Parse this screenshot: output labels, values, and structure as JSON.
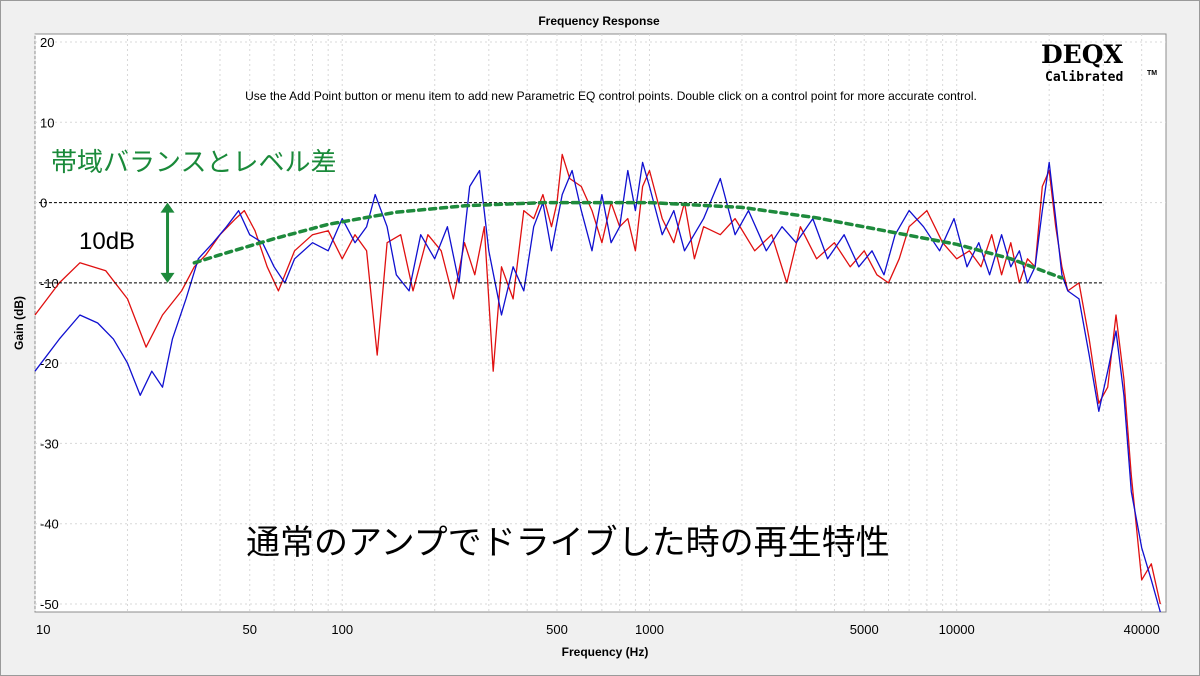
{
  "chart_data": {
    "type": "line",
    "title": "Frequency Response",
    "instruction": "Use the Add Point button or menu item to add new Parametric EQ control points.  Double click on a control point for more accurate control.",
    "xlabel": "Frequency (Hz)",
    "ylabel": "Gain (dB)",
    "x_scale": "log",
    "xlim": [
      10,
      48000
    ],
    "ylim": [
      -51,
      21
    ],
    "x_ticks": [
      10,
      50,
      100,
      500,
      1000,
      5000,
      10000,
      40000
    ],
    "x_tick_labels": [
      "10",
      "50",
      "100",
      "500",
      "1000",
      "5000",
      "10000",
      "40000"
    ],
    "y_ticks": [
      20,
      10,
      0,
      -10,
      -20,
      -30,
      -40,
      -50
    ],
    "y_tick_labels": [
      "20",
      "10",
      "0",
      "-10",
      "-20",
      "-30",
      "-40",
      "-50"
    ],
    "grid": true,
    "series": [
      {
        "color": "#e01010",
        "points": [
          [
            10,
            -14
          ],
          [
            12,
            -10
          ],
          [
            14,
            -7.5
          ],
          [
            17,
            -8.5
          ],
          [
            20,
            -12
          ],
          [
            23,
            -18
          ],
          [
            26,
            -14
          ],
          [
            30,
            -11
          ],
          [
            33,
            -8
          ],
          [
            36,
            -6.5
          ],
          [
            40,
            -4
          ],
          [
            45,
            -2
          ],
          [
            48,
            -1
          ],
          [
            52,
            -3.5
          ],
          [
            57,
            -8
          ],
          [
            62,
            -11
          ],
          [
            70,
            -6
          ],
          [
            80,
            -4
          ],
          [
            90,
            -3.5
          ],
          [
            100,
            -7
          ],
          [
            110,
            -4
          ],
          [
            120,
            -6
          ],
          [
            130,
            -19
          ],
          [
            140,
            -5
          ],
          [
            155,
            -4
          ],
          [
            170,
            -11
          ],
          [
            190,
            -4
          ],
          [
            210,
            -6
          ],
          [
            230,
            -12
          ],
          [
            250,
            -5
          ],
          [
            270,
            -9
          ],
          [
            290,
            -3
          ],
          [
            310,
            -21
          ],
          [
            330,
            -8
          ],
          [
            360,
            -12
          ],
          [
            390,
            -1
          ],
          [
            420,
            -2
          ],
          [
            450,
            1
          ],
          [
            480,
            -3
          ],
          [
            500,
            0
          ],
          [
            520,
            6
          ],
          [
            550,
            3
          ],
          [
            600,
            2
          ],
          [
            650,
            -1
          ],
          [
            700,
            -5
          ],
          [
            750,
            0
          ],
          [
            800,
            -3
          ],
          [
            850,
            -2
          ],
          [
            900,
            -6
          ],
          [
            950,
            2
          ],
          [
            1000,
            4
          ],
          [
            1100,
            -2
          ],
          [
            1200,
            -5
          ],
          [
            1300,
            0
          ],
          [
            1400,
            -7
          ],
          [
            1500,
            -3
          ],
          [
            1700,
            -4
          ],
          [
            1900,
            -2
          ],
          [
            2200,
            -6
          ],
          [
            2500,
            -4
          ],
          [
            2800,
            -10
          ],
          [
            3100,
            -3
          ],
          [
            3500,
            -7
          ],
          [
            4000,
            -5
          ],
          [
            4500,
            -8
          ],
          [
            5000,
            -6
          ],
          [
            5500,
            -9
          ],
          [
            6000,
            -10
          ],
          [
            6500,
            -7
          ],
          [
            7000,
            -3
          ],
          [
            8000,
            -1
          ],
          [
            9000,
            -5
          ],
          [
            10000,
            -7
          ],
          [
            11000,
            -6
          ],
          [
            12000,
            -8
          ],
          [
            13000,
            -4
          ],
          [
            14000,
            -9
          ],
          [
            15000,
            -5
          ],
          [
            16000,
            -10
          ],
          [
            17000,
            -7
          ],
          [
            18000,
            -8
          ],
          [
            19000,
            2
          ],
          [
            20000,
            4
          ],
          [
            21000,
            -3
          ],
          [
            22000,
            -8
          ],
          [
            23000,
            -11
          ],
          [
            25000,
            -10
          ],
          [
            27000,
            -17
          ],
          [
            29000,
            -25
          ],
          [
            31000,
            -23
          ],
          [
            33000,
            -14
          ],
          [
            35000,
            -22
          ],
          [
            37000,
            -34
          ],
          [
            40000,
            -47
          ],
          [
            43000,
            -45
          ],
          [
            46000,
            -50
          ]
        ]
      },
      {
        "color": "#1010d0",
        "points": [
          [
            10,
            -21
          ],
          [
            12,
            -17
          ],
          [
            14,
            -14
          ],
          [
            16,
            -15
          ],
          [
            18,
            -17
          ],
          [
            20,
            -20
          ],
          [
            22,
            -24
          ],
          [
            24,
            -21
          ],
          [
            26,
            -23
          ],
          [
            28,
            -17
          ],
          [
            31,
            -12
          ],
          [
            34,
            -7
          ],
          [
            38,
            -5
          ],
          [
            42,
            -3
          ],
          [
            46,
            -1
          ],
          [
            50,
            -4
          ],
          [
            55,
            -5
          ],
          [
            60,
            -8
          ],
          [
            65,
            -10
          ],
          [
            70,
            -7
          ],
          [
            80,
            -5
          ],
          [
            90,
            -6
          ],
          [
            100,
            -2
          ],
          [
            110,
            -5
          ],
          [
            120,
            -3
          ],
          [
            128,
            1
          ],
          [
            140,
            -3
          ],
          [
            150,
            -9
          ],
          [
            165,
            -11
          ],
          [
            180,
            -4
          ],
          [
            200,
            -7
          ],
          [
            220,
            -3
          ],
          [
            240,
            -10
          ],
          [
            260,
            2
          ],
          [
            280,
            4
          ],
          [
            300,
            -6
          ],
          [
            330,
            -14
          ],
          [
            360,
            -8
          ],
          [
            390,
            -11
          ],
          [
            420,
            -3
          ],
          [
            450,
            0
          ],
          [
            480,
            -6
          ],
          [
            520,
            1
          ],
          [
            560,
            4
          ],
          [
            600,
            -1
          ],
          [
            650,
            -6
          ],
          [
            700,
            1
          ],
          [
            750,
            -5
          ],
          [
            800,
            -3
          ],
          [
            850,
            4
          ],
          [
            900,
            -1
          ],
          [
            950,
            5
          ],
          [
            1000,
            2
          ],
          [
            1100,
            -4
          ],
          [
            1200,
            -1
          ],
          [
            1300,
            -6
          ],
          [
            1500,
            -2
          ],
          [
            1700,
            3
          ],
          [
            1900,
            -4
          ],
          [
            2100,
            -1
          ],
          [
            2400,
            -6
          ],
          [
            2700,
            -3
          ],
          [
            3000,
            -5
          ],
          [
            3400,
            -2
          ],
          [
            3800,
            -7
          ],
          [
            4300,
            -4
          ],
          [
            4800,
            -8
          ],
          [
            5300,
            -6
          ],
          [
            5800,
            -9
          ],
          [
            6300,
            -4
          ],
          [
            7000,
            -1
          ],
          [
            7800,
            -3
          ],
          [
            8800,
            -6
          ],
          [
            9800,
            -2
          ],
          [
            10800,
            -8
          ],
          [
            11800,
            -5
          ],
          [
            12800,
            -9
          ],
          [
            14000,
            -4
          ],
          [
            15000,
            -8
          ],
          [
            16000,
            -6
          ],
          [
            17000,
            -10
          ],
          [
            18000,
            -8
          ],
          [
            19000,
            -1
          ],
          [
            20000,
            5
          ],
          [
            21000,
            -2
          ],
          [
            22000,
            -9
          ],
          [
            23000,
            -11
          ],
          [
            25000,
            -12
          ],
          [
            27000,
            -19
          ],
          [
            29000,
            -26
          ],
          [
            31000,
            -21
          ],
          [
            33000,
            -16
          ],
          [
            35000,
            -24
          ],
          [
            37000,
            -36
          ],
          [
            40000,
            -43
          ],
          [
            43000,
            -47
          ],
          [
            46000,
            -51
          ]
        ]
      }
    ]
  },
  "logo": {
    "brand": "DEQX",
    "sub": "Calibrated",
    "tm": "TM"
  },
  "annotations": {
    "balance_label": "帯域バランスとレベル差",
    "level_label": "10dB",
    "caption": "通常のアンプでドライブした時の再生特性",
    "curve_points": [
      [
        33,
        -7.5
      ],
      [
        40,
        -6.5
      ],
      [
        60,
        -4.5
      ],
      [
        90,
        -2.7
      ],
      [
        150,
        -1.2
      ],
      [
        250,
        -0.4
      ],
      [
        450,
        0
      ],
      [
        1000,
        0
      ],
      [
        2000,
        -0.6
      ],
      [
        3500,
        -1.9
      ],
      [
        6000,
        -3.6
      ],
      [
        10000,
        -5.2
      ],
      [
        15000,
        -7
      ],
      [
        22000,
        -9.4
      ]
    ],
    "reference_lines": {
      "upper_db": 0,
      "lower_db": -10,
      "upper_from_hz": 10.3,
      "lower_from_hz": 10.3,
      "to_hz": 30000
    },
    "arrow": {
      "hz": 27,
      "from_db": 0,
      "to_db": -10
    }
  }
}
